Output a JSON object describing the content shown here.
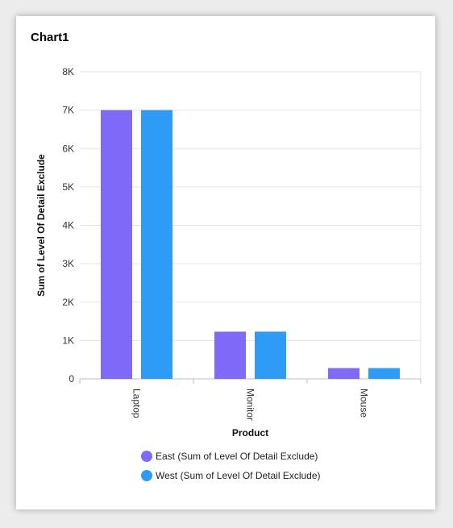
{
  "card": {
    "title": "Chart1"
  },
  "chart_data": {
    "type": "bar",
    "title": "Chart1",
    "xlabel": "Product",
    "ylabel": "Sum of Level Of Detail Exclude",
    "categories": [
      "Laptop",
      "Monitor",
      "Mouse"
    ],
    "series": [
      {
        "name": "East (Sum of Level Of Detail Exclude)",
        "color": "#7f69f7",
        "values": [
          7000,
          1230,
          280
        ]
      },
      {
        "name": "West (Sum of Level Of Detail Exclude)",
        "color": "#2e9bf7",
        "values": [
          7000,
          1230,
          280
        ]
      }
    ],
    "ylim": [
      0,
      8000
    ],
    "yticks": [
      0,
      1000,
      2000,
      3000,
      4000,
      5000,
      6000,
      7000,
      8000
    ],
    "ytick_labels": [
      "0",
      "1K",
      "2K",
      "3K",
      "4K",
      "5K",
      "6K",
      "7K",
      "8K"
    ],
    "grid": true,
    "legend_position": "bottom"
  }
}
